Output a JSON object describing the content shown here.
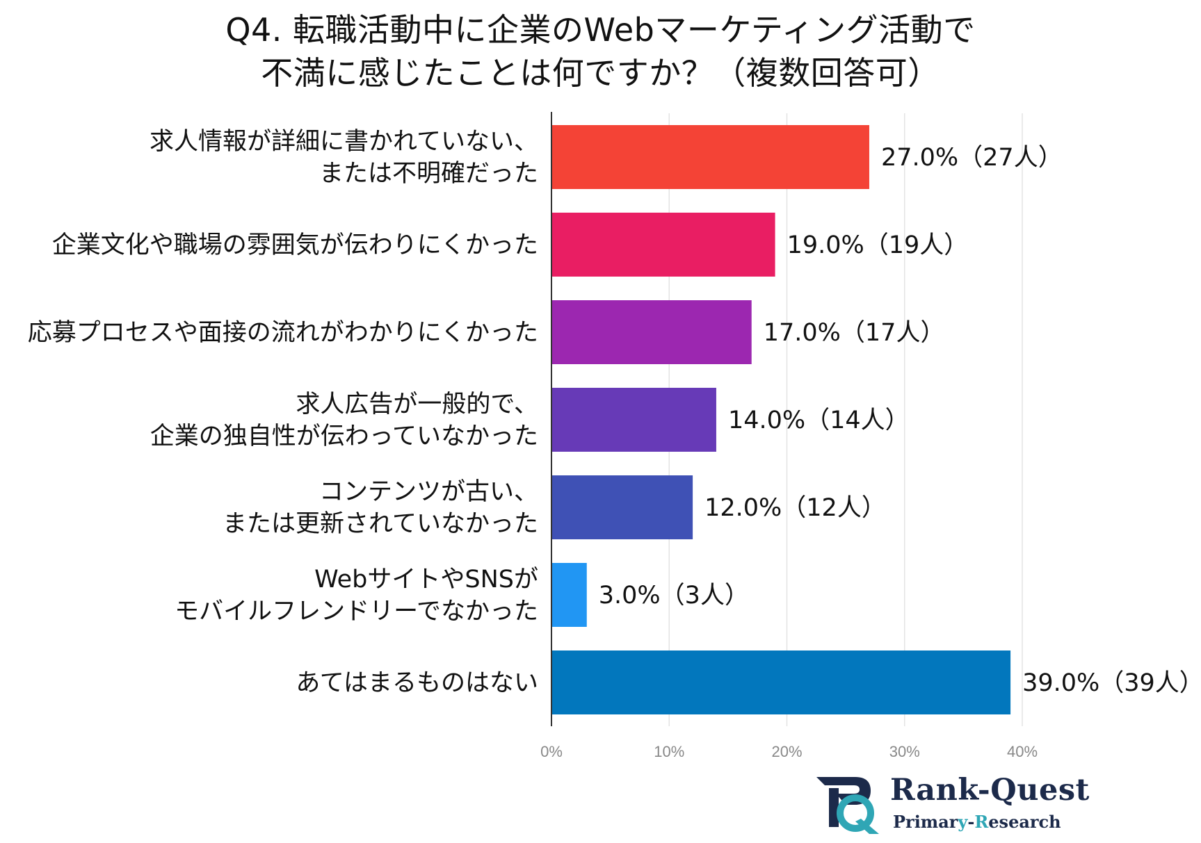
{
  "title": {
    "line1": "Q4. 転職活動中に企業のWebマーケティング活動で",
    "line2": "不満に感じたことは何ですか？（複数回答可）"
  },
  "chart_data": {
    "type": "bar",
    "orientation": "horizontal",
    "title": "Q4. 転職活動中に企業のWebマーケティング活動で 不満に感じたことは何ですか？（複数回答可）",
    "categories": [
      [
        "求人情報が詳細に書かれていない、",
        "または不明確だった"
      ],
      [
        "企業文化や職場の雰囲気が伝わりにくかった"
      ],
      [
        "応募プロセスや面接の流れがわかりにくかった"
      ],
      [
        "求人広告が一般的で、",
        "企業の独自性が伝わっていなかった"
      ],
      [
        "コンテンツが古い、",
        "または更新されていなかった"
      ],
      [
        "WebサイトやSNSが",
        "モバイルフレンドリーでなかった"
      ],
      [
        "あてはまるものはない"
      ]
    ],
    "values": [
      27.0,
      19.0,
      17.0,
      14.0,
      12.0,
      3.0,
      39.0
    ],
    "counts": [
      27,
      19,
      17,
      14,
      12,
      3,
      39
    ],
    "value_labels": [
      "27.0%（27人）",
      "19.0%（19人）",
      "17.0%（17人）",
      "14.0%（14人）",
      "12.0%（12人）",
      "3.0%（3人）",
      "39.0%（39人）"
    ],
    "colors": [
      "#f44336",
      "#e91e63",
      "#9c27b0",
      "#673ab7",
      "#3f51b5",
      "#2196f3",
      "#0277bd"
    ],
    "xlim": [
      0,
      40
    ],
    "xticks": [
      0,
      10,
      20,
      30,
      40
    ],
    "xtick_labels": [
      "0%",
      "10%",
      "20%",
      "30%",
      "40%"
    ],
    "grid": true,
    "legend": "none"
  },
  "logo": {
    "name": "Rank-Quest",
    "sub_prefix": "Primar",
    "sub_accent1": "y",
    "sub_mid": "-",
    "sub_accent2": "R",
    "sub_suffix": "esearch",
    "colors": {
      "navy": "#1c2a4a",
      "teal": "#2fa6b5"
    }
  }
}
